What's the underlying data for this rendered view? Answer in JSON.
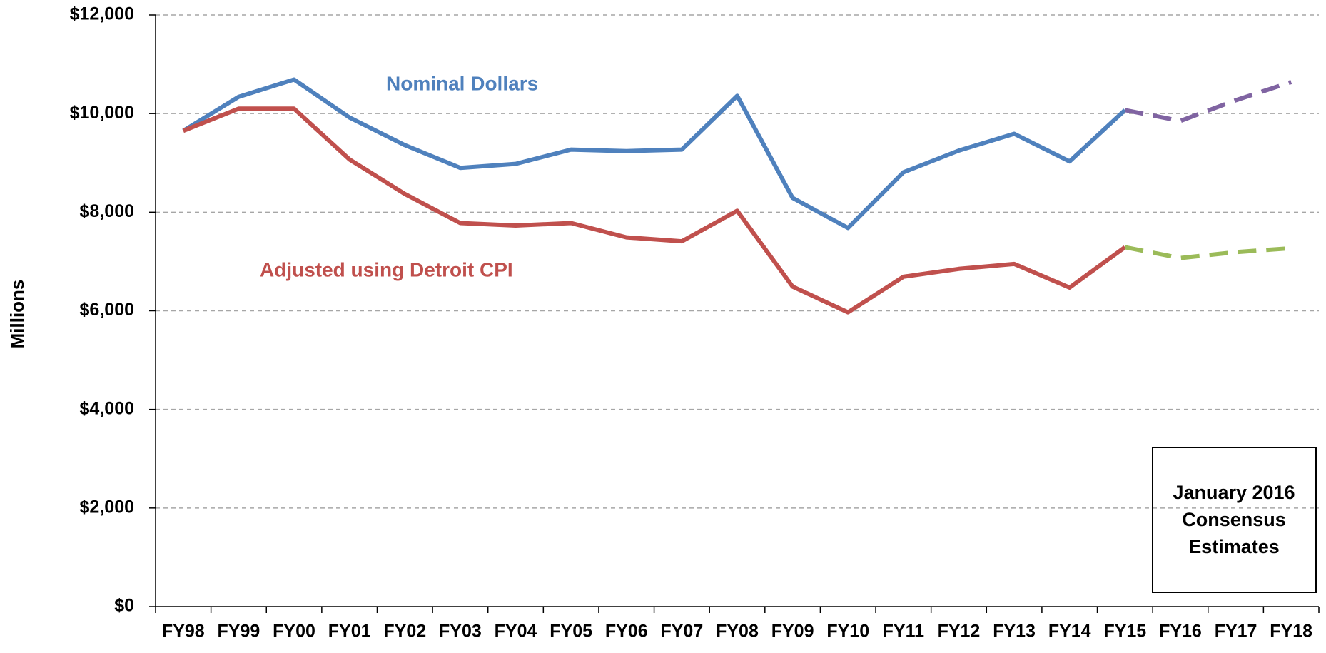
{
  "chart_data": {
    "type": "line",
    "y_label": "Millions",
    "categories": [
      "FY98",
      "FY99",
      "FY00",
      "FY01",
      "FY02",
      "FY03",
      "FY04",
      "FY05",
      "FY06",
      "FY07",
      "FY08",
      "FY09",
      "FY10",
      "FY11",
      "FY12",
      "FY13",
      "FY14",
      "FY15",
      "FY16",
      "FY17",
      "FY18"
    ],
    "series": [
      {
        "name": "Nominal Dollars",
        "color": "#4f81bd",
        "dashed": false,
        "values": [
          9650,
          10340,
          10690,
          9920,
          9360,
          8900,
          8980,
          9270,
          9240,
          9270,
          10360,
          8290,
          7680,
          8810,
          9250,
          9590,
          9030,
          10070,
          null,
          null,
          null
        ]
      },
      {
        "name": "Adjusted using Detroit CPI",
        "color": "#c0504d",
        "dashed": false,
        "values": [
          9650,
          10100,
          10100,
          9070,
          8370,
          7780,
          7730,
          7780,
          7490,
          7410,
          8030,
          6490,
          5970,
          6690,
          6850,
          6950,
          6470,
          7290,
          null,
          null,
          null
        ]
      },
      {
        "color": "#8064a2",
        "dashed": true,
        "values": [
          null,
          null,
          null,
          null,
          null,
          null,
          null,
          null,
          null,
          null,
          null,
          null,
          null,
          null,
          null,
          null,
          null,
          10070,
          9850,
          10270,
          10640
        ]
      },
      {
        "color": "#9bbb59",
        "dashed": true,
        "values": [
          null,
          null,
          null,
          null,
          null,
          null,
          null,
          null,
          null,
          null,
          null,
          null,
          null,
          null,
          null,
          null,
          null,
          7290,
          7070,
          7190,
          7270
        ]
      }
    ],
    "ylim": [
      0,
      12000
    ],
    "yticks": [
      {
        "value": 0,
        "label": "$0"
      },
      {
        "value": 2000,
        "label": "$2,000"
      },
      {
        "value": 4000,
        "label": "$4,000"
      },
      {
        "value": 6000,
        "label": "$6,000"
      },
      {
        "value": 8000,
        "label": "$8,000"
      },
      {
        "value": 10000,
        "label": "$10,000"
      },
      {
        "value": 12000,
        "label": "$12,000"
      }
    ],
    "grid": true,
    "annotation": [
      "January 2016",
      "Consensus",
      "Estimates"
    ]
  }
}
